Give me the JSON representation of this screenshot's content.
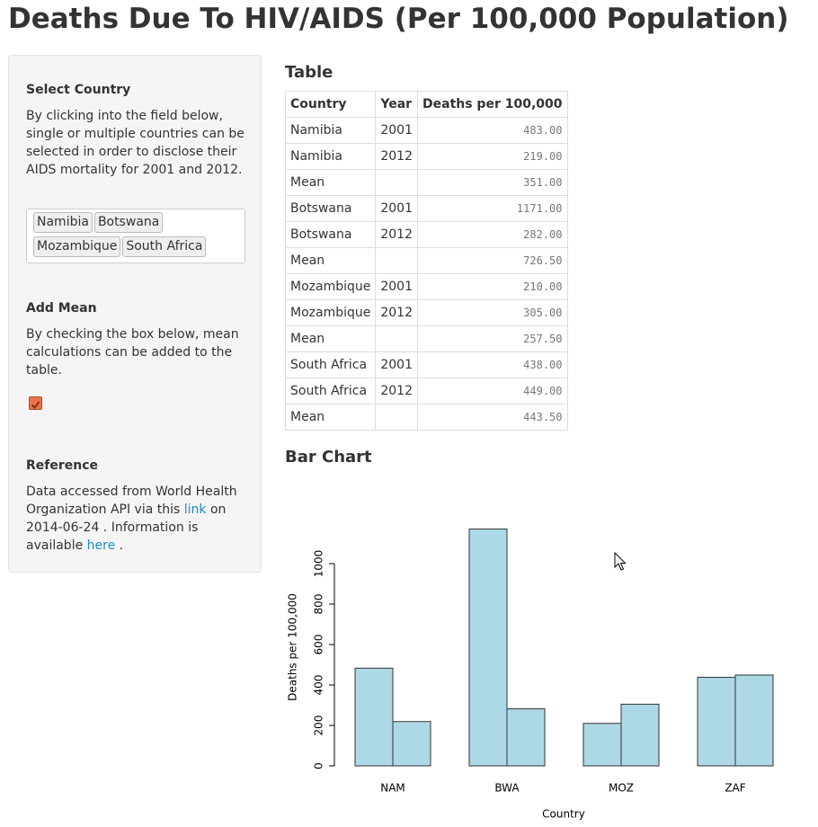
{
  "header": {
    "title": "Deaths Due To HIV/AIDS (Per 100,000 Population)"
  },
  "sidebar": {
    "select_country": {
      "heading": "Select Country",
      "description": "By clicking into the field below, single or multiple countries can be selected in order to disclose their AIDS mortality for 2001 and 2012.",
      "tags": [
        "Namibia",
        "Botswana",
        "Mozambique",
        "South Africa"
      ]
    },
    "add_mean": {
      "heading": "Add Mean",
      "description": "By checking the box below, mean calculations can be added to the table.",
      "checked": true
    },
    "reference": {
      "heading": "Reference",
      "text_before": "Data accessed from World Health Organization API via this",
      "link1": "link",
      "text_middle": "on 2014-06-24 . Information is available",
      "link2": "here",
      "text_after": "."
    }
  },
  "table": {
    "heading": "Table",
    "columns": [
      "Country",
      "Year",
      "Deaths per 100,000"
    ],
    "rows": [
      [
        "Namibia",
        "2001",
        "483.00"
      ],
      [
        "Namibia",
        "2012",
        "219.00"
      ],
      [
        "Mean",
        null,
        "351.00"
      ],
      [
        "Botswana",
        "2001",
        "1171.00"
      ],
      [
        "Botswana",
        "2012",
        "282.00"
      ],
      [
        "Mean",
        null,
        "726.50"
      ],
      [
        "Mozambique",
        "2001",
        "210.00"
      ],
      [
        "Mozambique",
        "2012",
        "305.00"
      ],
      [
        "Mean",
        null,
        "257.50"
      ],
      [
        "South Africa",
        "2001",
        "438.00"
      ],
      [
        "South Africa",
        "2012",
        "449.00"
      ],
      [
        "Mean",
        null,
        "443.50"
      ]
    ]
  },
  "chart_data": {
    "type": "bar",
    "title": "Bar Chart",
    "categories": [
      "NAM",
      "BWA",
      "MOZ",
      "ZAF"
    ],
    "series": [
      {
        "color": "#add8e6",
        "values": [
          483,
          1171,
          210,
          438
        ]
      },
      {
        "color": "#add8e6",
        "values": [
          219,
          282,
          305,
          449
        ]
      }
    ],
    "xlabel": "Country",
    "ylabel": "Deaths per 100,000",
    "ylim": [
      0,
      1200
    ],
    "yticks": [
      0,
      200,
      400,
      600,
      800,
      1000
    ]
  }
}
